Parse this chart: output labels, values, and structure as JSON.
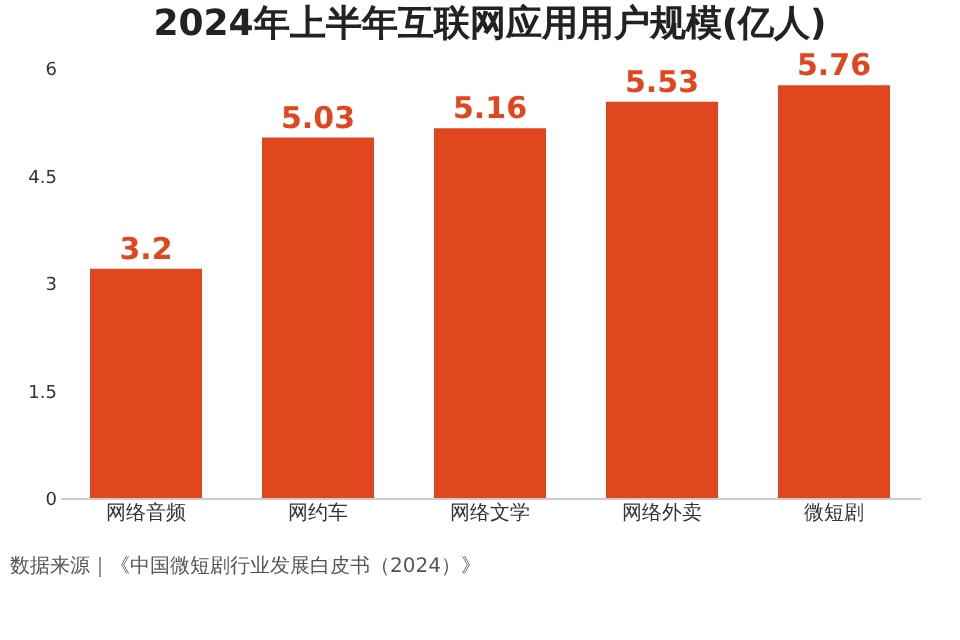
{
  "chart_data": {
    "type": "bar",
    "title": "2024年上半年互联网应用用户规模(亿人)",
    "categories": [
      "网络音频",
      "网约车",
      "网络文学",
      "网络外卖",
      "微短剧"
    ],
    "values": [
      3.2,
      5.03,
      5.16,
      5.53,
      5.76
    ],
    "color": "#e0471f",
    "ylim": [
      0,
      6
    ],
    "yticks": [
      0,
      1.5,
      3,
      4.5,
      6
    ],
    "grid": false,
    "data_labels": true,
    "annotations": [
      "数据来源｜《中国微短剧行业发展白皮书（2024）》"
    ]
  }
}
